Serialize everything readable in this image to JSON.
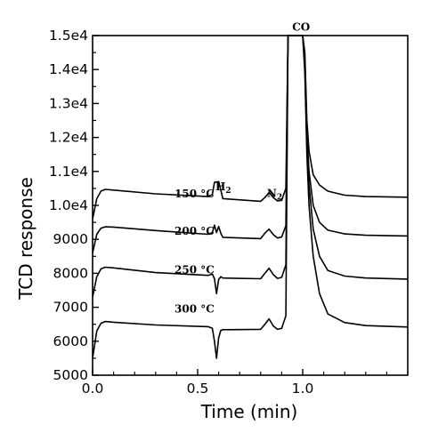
{
  "chart_data": {
    "type": "line",
    "xlabel": "Time (min)",
    "ylabel": "TCD response",
    "xlim": [
      0.0,
      1.5
    ],
    "ylim": [
      5000,
      15000
    ],
    "x_ticks": [
      0.0,
      0.5,
      1.0
    ],
    "x_tick_labels": [
      "0.0",
      "0.5",
      "1.0"
    ],
    "y_ticks": [
      5000,
      6000,
      7000,
      8000,
      9000,
      10000,
      11000,
      12000,
      13000,
      14000,
      15000
    ],
    "y_tick_labels": [
      "5000",
      "6000",
      "7000",
      "8000",
      "9000",
      "1.0e4",
      "1.1e4",
      "1.2e4",
      "1.3e4",
      "1.4e4",
      "1.5e4"
    ],
    "grid": false,
    "peak_labels": [
      {
        "text": "H",
        "sub": "2",
        "x": 0.585,
        "y": 10450
      },
      {
        "text": "N",
        "sub": "2",
        "x": 0.83,
        "y": 10250
      },
      {
        "text": "CO",
        "x": 0.95,
        "y": 15150
      }
    ],
    "series": [
      {
        "name": "150 °C",
        "label_at": {
          "x": 0.39,
          "y": 10230
        },
        "x": [
          0.0,
          0.02,
          0.04,
          0.06,
          0.1,
          0.3,
          0.55,
          0.57,
          0.58,
          0.6,
          0.61,
          0.62,
          0.8,
          0.82,
          0.84,
          0.86,
          0.88,
          0.9,
          0.92,
          0.93,
          0.94,
          1.0,
          1.01,
          1.02,
          1.03,
          1.05,
          1.08,
          1.12,
          1.2,
          1.3,
          1.5
        ],
        "y": [
          9600,
          10200,
          10420,
          10470,
          10450,
          10340,
          10260,
          10320,
          10680,
          10700,
          10450,
          10200,
          10120,
          10230,
          10380,
          10230,
          10130,
          10150,
          10500,
          15000,
          15000,
          15000,
          14500,
          12500,
          11600,
          10900,
          10600,
          10420,
          10300,
          10260,
          10240
        ]
      },
      {
        "name": "200 °C",
        "label_at": {
          "x": 0.39,
          "y": 9130
        },
        "x": [
          0.0,
          0.02,
          0.04,
          0.06,
          0.1,
          0.3,
          0.55,
          0.57,
          0.58,
          0.59,
          0.6,
          0.61,
          0.62,
          0.8,
          0.82,
          0.84,
          0.86,
          0.88,
          0.9,
          0.92,
          0.93,
          0.94,
          1.0,
          1.01,
          1.02,
          1.03,
          1.05,
          1.08,
          1.12,
          1.2,
          1.3,
          1.5
        ],
        "y": [
          8600,
          9150,
          9330,
          9370,
          9360,
          9260,
          9150,
          9200,
          9420,
          9200,
          9380,
          9180,
          9060,
          9020,
          9180,
          9300,
          9140,
          9040,
          9070,
          9400,
          15000,
          15000,
          15000,
          14300,
          12100,
          11000,
          10000,
          9500,
          9270,
          9160,
          9120,
          9100
        ]
      },
      {
        "name": "250 °C",
        "label_at": {
          "x": 0.39,
          "y": 8000
        },
        "x": [
          0.0,
          0.02,
          0.04,
          0.06,
          0.1,
          0.3,
          0.55,
          0.57,
          0.58,
          0.59,
          0.6,
          0.61,
          0.62,
          0.8,
          0.82,
          0.84,
          0.86,
          0.88,
          0.9,
          0.92,
          0.93,
          0.94,
          1.0,
          1.01,
          1.02,
          1.03,
          1.05,
          1.08,
          1.12,
          1.2,
          1.3,
          1.5
        ],
        "y": [
          7300,
          7900,
          8130,
          8180,
          8160,
          8020,
          7940,
          7980,
          7840,
          7400,
          7820,
          7900,
          7860,
          7840,
          8000,
          8150,
          7960,
          7850,
          7880,
          8250,
          15000,
          15000,
          15000,
          14100,
          11800,
          10600,
          9300,
          8500,
          8080,
          7920,
          7860,
          7830
        ]
      },
      {
        "name": "300 °C",
        "label_at": {
          "x": 0.39,
          "y": 6850
        },
        "x": [
          0.0,
          0.02,
          0.04,
          0.06,
          0.1,
          0.3,
          0.55,
          0.57,
          0.58,
          0.59,
          0.6,
          0.61,
          0.62,
          0.8,
          0.82,
          0.84,
          0.86,
          0.88,
          0.9,
          0.92,
          0.93,
          0.94,
          1.0,
          1.01,
          1.02,
          1.03,
          1.05,
          1.08,
          1.12,
          1.2,
          1.3,
          1.5
        ],
        "y": [
          5500,
          6300,
          6530,
          6580,
          6560,
          6480,
          6430,
          6380,
          6000,
          5500,
          6100,
          6320,
          6340,
          6350,
          6500,
          6660,
          6450,
          6350,
          6380,
          6750,
          15000,
          15000,
          15000,
          13900,
          11500,
          10000,
          8500,
          7400,
          6800,
          6550,
          6460,
          6420
        ]
      }
    ]
  }
}
